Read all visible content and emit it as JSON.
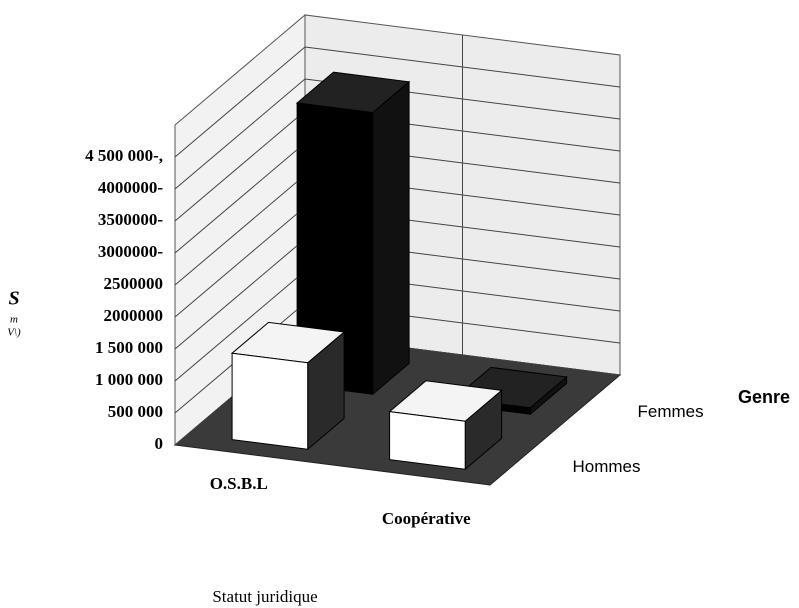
{
  "chart_data": {
    "type": "bar3d",
    "categories": [
      "O.S.B.L",
      "Coopérative"
    ],
    "series": [
      {
        "name": "Hommes",
        "color": "#ffffff",
        "values": [
          1350000,
          750000
        ]
      },
      {
        "name": "Femmes",
        "color": "#000000",
        "values": [
          4400000,
          100000
        ]
      }
    ],
    "ylim": [
      0,
      5000000
    ],
    "yticks": [
      0,
      {
        "value": 500000,
        "label": "500 000"
      },
      {
        "value": 1000000,
        "label": "1 000 000"
      },
      {
        "value": 1500000,
        "label": "1 500 000"
      },
      2000000,
      2500000,
      {
        "value": 3000000,
        "label": "3000000-"
      },
      {
        "value": 3500000,
        "label": "3500000-"
      },
      {
        "value": 4000000,
        "label": "4000000-"
      },
      {
        "value": 4500000,
        "label": "4 500 000-,"
      }
    ],
    "y_label": [
      "S",
      "m",
      "V\\)"
    ],
    "x_label": "Statut juridique",
    "depth_label": "Genre",
    "grid": true
  }
}
